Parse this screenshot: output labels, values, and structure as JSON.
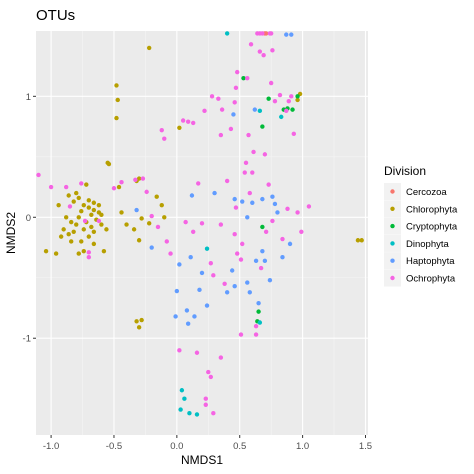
{
  "chart_data": {
    "type": "scatter",
    "title": "OTUs",
    "xlabel": "NMDS1",
    "ylabel": "NMDS2",
    "xlim": [
      -1.12,
      1.52
    ],
    "ylim": [
      -1.8,
      1.54
    ],
    "xticks": [
      -1.0,
      -0.5,
      0.0,
      0.5,
      1.0,
      1.5
    ],
    "xtick_labels": [
      "-1.0",
      "-0.5",
      "0.0",
      "0.5",
      "1.0",
      "1.5"
    ],
    "yticks": [
      -1,
      0,
      1
    ],
    "ytick_labels": [
      "-1",
      "0",
      "1"
    ],
    "grid": true,
    "background": "#ebebeb",
    "legend": {
      "title": "Division",
      "position": "right"
    },
    "series": [
      {
        "name": "Cercozoa",
        "color": "#F8766D",
        "points": [
          [
            0.7,
            1.52
          ],
          [
            0.71,
            1.52
          ]
        ]
      },
      {
        "name": "Chlorophyta",
        "color": "#B79F00",
        "points": [
          [
            -0.22,
            1.4
          ],
          [
            -0.48,
            1.09
          ],
          [
            -0.47,
            0.97
          ],
          [
            -0.48,
            0.82
          ],
          [
            -0.55,
            0.45
          ],
          [
            -0.54,
            0.44
          ],
          [
            -0.46,
            0.25
          ],
          [
            -0.3,
            0.32
          ],
          [
            -0.32,
            0.3
          ],
          [
            -0.44,
            0.04
          ],
          [
            -0.4,
            -0.06
          ],
          [
            -0.34,
            -0.1
          ],
          [
            -0.28,
            -0.01
          ],
          [
            -0.3,
            -0.19
          ],
          [
            -0.22,
            -0.05
          ],
          [
            -0.16,
            0.17
          ],
          [
            -0.12,
            0.1
          ],
          [
            -0.1,
            0.0
          ],
          [
            -0.28,
            -0.85
          ],
          [
            -0.3,
            -0.91
          ],
          [
            -0.32,
            -0.86
          ],
          [
            1.44,
            -0.19
          ],
          [
            1.47,
            -0.19
          ],
          [
            0.98,
            1.02
          ],
          [
            0.96,
            0.97
          ],
          [
            0.02,
            0.74
          ],
          [
            -0.72,
            0.27
          ],
          [
            -0.78,
            0.16
          ],
          [
            -0.82,
            0.13
          ],
          [
            -0.74,
            0.1
          ],
          [
            -0.7,
            0.08
          ],
          [
            -0.66,
            0.06
          ],
          [
            -0.62,
            0.04
          ],
          [
            -0.76,
            0.05
          ],
          [
            -0.68,
            0.02
          ],
          [
            -0.64,
            -0.02
          ],
          [
            -0.72,
            -0.04
          ],
          [
            -0.78,
            0.0
          ],
          [
            -0.84,
            -0.04
          ],
          [
            -0.88,
            0.0
          ],
          [
            -0.6,
            -0.06
          ],
          [
            -0.56,
            -0.1
          ],
          [
            -0.66,
            -0.12
          ],
          [
            -0.74,
            -0.1
          ],
          [
            -0.82,
            -0.12
          ],
          [
            -0.9,
            -0.1
          ],
          [
            -0.7,
            -0.16
          ],
          [
            -0.76,
            -0.2
          ],
          [
            -0.84,
            -0.2
          ],
          [
            -0.92,
            -0.16
          ],
          [
            -1.04,
            -0.28
          ],
          [
            -0.96,
            -0.3
          ],
          [
            -0.78,
            -0.3
          ],
          [
            -0.74,
            -0.28
          ],
          [
            -0.66,
            -0.22
          ],
          [
            -0.58,
            -0.28
          ],
          [
            -0.8,
            0.2
          ],
          [
            -0.86,
            0.18
          ],
          [
            -0.66,
            0.12
          ],
          [
            -0.7,
            0.14
          ],
          [
            -0.62,
            0.1
          ],
          [
            -0.68,
            -0.08
          ],
          [
            -0.8,
            -0.06
          ],
          [
            -0.86,
            -0.14
          ],
          [
            -0.94,
            0.1
          ],
          [
            -0.6,
            0.02
          ]
        ]
      },
      {
        "name": "Cryptophyta",
        "color": "#00BA38",
        "points": [
          [
            0.53,
            1.15
          ],
          [
            0.68,
            -0.08
          ],
          [
            0.65,
            -0.78
          ],
          [
            0.64,
            -0.86
          ],
          [
            0.88,
            0.9
          ],
          [
            0.92,
            0.89
          ],
          [
            0.96,
            1.0
          ],
          [
            0.73,
            0.98
          ],
          [
            0.68,
            0.75
          ],
          [
            0.85,
            0.89
          ]
        ]
      },
      {
        "name": "Dinophyta",
        "color": "#00BFC4",
        "points": [
          [
            0.4,
            1.52
          ],
          [
            0.66,
            0.88
          ],
          [
            0.04,
            -1.43
          ],
          [
            0.06,
            -1.5
          ],
          [
            0.1,
            -1.62
          ],
          [
            0.16,
            -1.63
          ],
          [
            0.03,
            -1.59
          ],
          [
            0.83,
            0.83
          ],
          [
            0.66,
            -0.87
          ],
          [
            0.24,
            -0.26
          ]
        ]
      },
      {
        "name": "Haptophyta",
        "color": "#619CFF",
        "points": [
          [
            0.91,
            1.51
          ],
          [
            0.87,
            1.51
          ],
          [
            -0.2,
            -0.25
          ],
          [
            0.02,
            -0.39
          ],
          [
            0.11,
            -0.33
          ],
          [
            0.2,
            -0.46
          ],
          [
            0.18,
            -0.6
          ],
          [
            0.24,
            -0.73
          ],
          [
            0.0,
            -0.61
          ],
          [
            0.08,
            -0.77
          ],
          [
            0.14,
            -0.82
          ],
          [
            -0.01,
            -0.82
          ],
          [
            0.09,
            -0.88
          ],
          [
            0.44,
            -0.44
          ],
          [
            0.46,
            -0.57
          ],
          [
            0.56,
            -0.54
          ],
          [
            0.65,
            -0.71
          ],
          [
            0.74,
            -0.52
          ],
          [
            0.7,
            -0.36
          ],
          [
            0.63,
            -0.36
          ],
          [
            0.56,
            0.0
          ],
          [
            0.6,
            0.12
          ],
          [
            0.8,
            0.04
          ],
          [
            0.78,
            0.11
          ],
          [
            0.68,
            0.15
          ],
          [
            0.52,
            0.13
          ],
          [
            0.3,
            0.2
          ],
          [
            0.45,
            0.85
          ],
          [
            0.62,
            0.89
          ],
          [
            0.76,
            0.17
          ],
          [
            0.68,
            -0.28
          ],
          [
            0.84,
            -0.33
          ],
          [
            0.9,
            -0.22
          ],
          [
            0.46,
            0.15
          ],
          [
            0.12,
            0.18
          ],
          [
            -0.32,
            0.06
          ],
          [
            0.4,
            -0.62
          ],
          [
            0.58,
            -0.62
          ]
        ]
      },
      {
        "name": "Ochrophyta",
        "color": "#F564E3",
        "points": [
          [
            -1.1,
            0.35
          ],
          [
            -1.0,
            0.25
          ],
          [
            -0.88,
            0.25
          ],
          [
            -0.85,
            0.09
          ],
          [
            -0.76,
            0.28
          ],
          [
            -0.73,
            -0.03
          ],
          [
            -0.7,
            -0.29
          ],
          [
            -0.7,
            -0.33
          ],
          [
            -0.62,
            -0.03
          ],
          [
            -0.5,
            0.24
          ],
          [
            -0.44,
            0.29
          ],
          [
            -0.33,
            0.31
          ],
          [
            -0.27,
            0.32
          ],
          [
            -0.24,
            0.21
          ],
          [
            -0.2,
            0.01
          ],
          [
            -0.15,
            -0.08
          ],
          [
            -0.12,
            0.72
          ],
          [
            -0.1,
            0.65
          ],
          [
            0.05,
            0.8
          ],
          [
            0.09,
            0.79
          ],
          [
            0.13,
            0.78
          ],
          [
            0.22,
            0.88
          ],
          [
            0.28,
            1.0
          ],
          [
            0.33,
            0.98
          ],
          [
            0.35,
            0.68
          ],
          [
            0.36,
            0.89
          ],
          [
            0.46,
            0.95
          ],
          [
            0.47,
            1.07
          ],
          [
            0.48,
            1.2
          ],
          [
            0.55,
            0.45
          ],
          [
            0.56,
            1.15
          ],
          [
            0.59,
            1.43
          ],
          [
            0.6,
            0.37
          ],
          [
            0.61,
            0.54
          ],
          [
            0.64,
            1.52
          ],
          [
            0.66,
            1.52
          ],
          [
            0.68,
            1.52
          ],
          [
            0.69,
            1.34
          ],
          [
            0.73,
            0.27
          ],
          [
            0.74,
            1.52
          ],
          [
            0.75,
            1.52
          ],
          [
            0.76,
            1.38
          ],
          [
            0.82,
            1.01
          ],
          [
            0.87,
            0.88
          ],
          [
            0.88,
            0.07
          ],
          [
            0.89,
            0.96
          ],
          [
            0.91,
            1.0
          ],
          [
            0.93,
            0.69
          ],
          [
            0.99,
            -0.12
          ],
          [
            1.05,
            0.09
          ],
          [
            0.57,
            0.68
          ],
          [
            0.17,
            0.28
          ],
          [
            0.4,
            0.3
          ],
          [
            0.2,
            -0.05
          ],
          [
            -0.08,
            -0.2
          ],
          [
            0.13,
            -0.12
          ],
          [
            0.07,
            -0.04
          ],
          [
            -0.05,
            -0.3
          ],
          [
            0.27,
            -0.38
          ],
          [
            0.29,
            -0.48
          ],
          [
            0.38,
            -0.55
          ],
          [
            0.51,
            -0.35
          ],
          [
            0.48,
            -0.3
          ],
          [
            0.67,
            -0.42
          ],
          [
            0.63,
            -0.9
          ],
          [
            0.51,
            -0.97
          ],
          [
            0.63,
            -0.97
          ],
          [
            0.16,
            -1.12
          ],
          [
            0.25,
            -1.28
          ],
          [
            0.27,
            -1.32
          ],
          [
            0.35,
            -1.16
          ],
          [
            0.23,
            -1.5
          ],
          [
            0.23,
            -1.55
          ],
          [
            0.29,
            -1.62
          ],
          [
            0.02,
            -1.1
          ],
          [
            0.54,
            0.37
          ],
          [
            0.58,
            0.2
          ],
          [
            0.47,
            0.08
          ],
          [
            0.46,
            -0.14
          ],
          [
            0.76,
            -0.03
          ],
          [
            0.84,
            -0.18
          ],
          [
            0.96,
            0.04
          ],
          [
            0.66,
            1.37
          ],
          [
            0.75,
            1.11
          ],
          [
            0.78,
            0.96
          ],
          [
            0.71,
            -0.12
          ],
          [
            0.35,
            -0.06
          ],
          [
            0.52,
            -0.22
          ],
          [
            0.7,
            0.52
          ],
          [
            0.43,
            0.73
          ]
        ]
      }
    ]
  }
}
